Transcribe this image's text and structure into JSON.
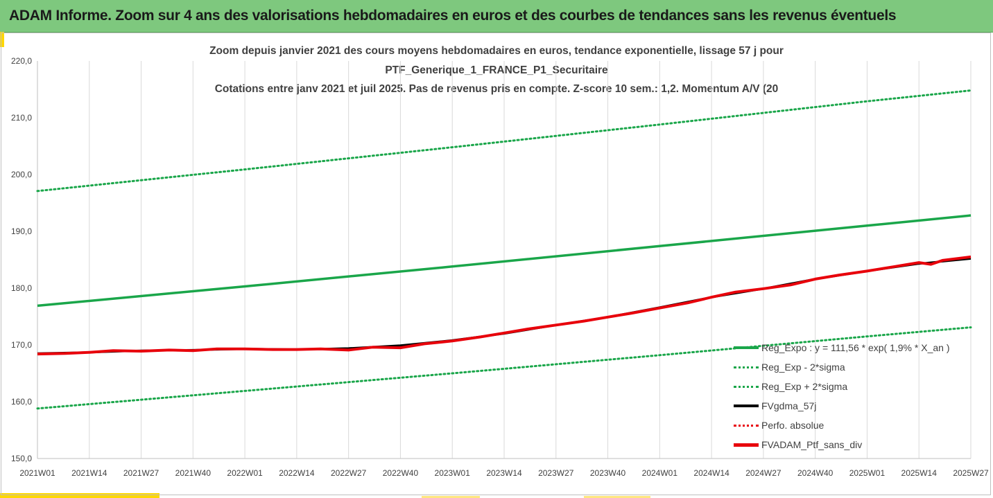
{
  "banner": {
    "title": "ADAM Informe. Zoom sur 4 ans des valorisations hebdomadaires en euros et des courbes de tendances sans les revenus éventuels"
  },
  "colors": {
    "banner_bg": "#7ec87e",
    "trend": "#1aa64a",
    "price": "#e8000b",
    "moving_avg": "#000000",
    "accent": "#ffd700"
  },
  "chart_data": {
    "type": "line",
    "title_lines": [
      "Zoom depuis janvier 2021 des cours moyens hebdomadaires  en euros, tendance exponentielle, lissage 57 j pour",
      "PTF_Generique_1_FRANCE_P1_Securitaire",
      "Cotations entre janv 2021 et juil 2025. Pas de revenus pris en compte. Z-score 10 sem.: 1,2. Momentum A/V (20"
    ],
    "x_ticks": [
      "2021W01",
      "2021W14",
      "2021W27",
      "2021W40",
      "2022W01",
      "2022W14",
      "2022W27",
      "2022W40",
      "2023W01",
      "2023W14",
      "2023W27",
      "2023W40",
      "2024W01",
      "2024W14",
      "2024W27",
      "2024W40",
      "2025W01",
      "2025W14",
      "2025W27"
    ],
    "y_ticks": [
      "150,0",
      "160,0",
      "170,0",
      "180,0",
      "190,0",
      "200,0",
      "210,0",
      "220,0"
    ],
    "ylim": [
      150,
      220
    ],
    "grid": "vertical",
    "legend_position": "bottom-right",
    "legend": [
      {
        "label": "Reg_Expo : y = 111,56 * exp( 1,9% *  X_an )",
        "style": "solid-green"
      },
      {
        "label": "Reg_Exp - 2*sigma",
        "style": "dotted-green"
      },
      {
        "label": "Reg_Exp + 2*sigma",
        "style": "dotted-green"
      },
      {
        "label": "FVgdma_57j",
        "style": "solid-black"
      },
      {
        "label": "Perfo. absolue",
        "style": "dotted-red"
      },
      {
        "label": "FVADAM_Ptf_sans_div",
        "style": "solid-red-thick"
      }
    ],
    "series": [
      {
        "name": "Reg_Expo : y = 111,56 * exp( 1,9% *  X_an )",
        "x": [
          "2021W01",
          "2022W01",
          "2023W01",
          "2024W01",
          "2025W01",
          "2025W27"
        ],
        "values": [
          176.9,
          180.3,
          183.8,
          187.4,
          191.0,
          192.8
        ]
      },
      {
        "name": "Reg_Exp - 2*sigma",
        "x": [
          "2021W01",
          "2022W01",
          "2023W01",
          "2024W01",
          "2025W01",
          "2025W27"
        ],
        "values": [
          158.8,
          161.9,
          165.0,
          168.2,
          171.5,
          173.1
        ]
      },
      {
        "name": "Reg_Exp + 2*sigma",
        "x": [
          "2021W01",
          "2022W01",
          "2023W01",
          "2024W01",
          "2025W01",
          "2025W27"
        ],
        "values": [
          197.1,
          200.9,
          204.8,
          208.8,
          212.9,
          214.8
        ]
      },
      {
        "name": "FVgdma_57j",
        "x": [
          "2021W01",
          "2021W14",
          "2021W27",
          "2021W40",
          "2022W01",
          "2022W14",
          "2022W27",
          "2022W40",
          "2023W01",
          "2023W14",
          "2023W27",
          "2023W40",
          "2024W01",
          "2024W14",
          "2024W27",
          "2024W40",
          "2025W01",
          "2025W14",
          "2025W27"
        ],
        "values": [
          168.5,
          168.7,
          169.0,
          169.1,
          169.3,
          169.2,
          169.4,
          169.9,
          170.8,
          172.0,
          173.5,
          174.9,
          176.6,
          178.4,
          179.9,
          181.6,
          183.0,
          184.3,
          185.2
        ]
      },
      {
        "name": "FVADAM_Ptf_sans_div",
        "x": [
          "2021W01",
          "2021W08",
          "2021W14",
          "2021W20",
          "2021W27",
          "2021W34",
          "2021W40",
          "2021W46",
          "2022W01",
          "2022W08",
          "2022W14",
          "2022W20",
          "2022W27",
          "2022W33",
          "2022W40",
          "2022W46",
          "2023W01",
          "2023W08",
          "2023W14",
          "2023W20",
          "2023W27",
          "2023W34",
          "2023W40",
          "2023W46",
          "2024W01",
          "2024W08",
          "2024W14",
          "2024W20",
          "2024W27",
          "2024W34",
          "2024W40",
          "2024W46",
          "2025W01",
          "2025W08",
          "2025W14",
          "2025W17",
          "2025W20",
          "2025W27"
        ],
        "values": [
          168.4,
          168.5,
          168.7,
          169.0,
          168.9,
          169.1,
          169.0,
          169.3,
          169.3,
          169.2,
          169.2,
          169.3,
          169.1,
          169.6,
          169.5,
          170.2,
          170.7,
          171.4,
          172.1,
          172.8,
          173.5,
          174.2,
          174.9,
          175.6,
          176.5,
          177.4,
          178.4,
          179.3,
          179.9,
          180.6,
          181.6,
          182.3,
          183.0,
          183.8,
          184.5,
          184.2,
          184.9,
          185.5
        ]
      }
    ]
  }
}
